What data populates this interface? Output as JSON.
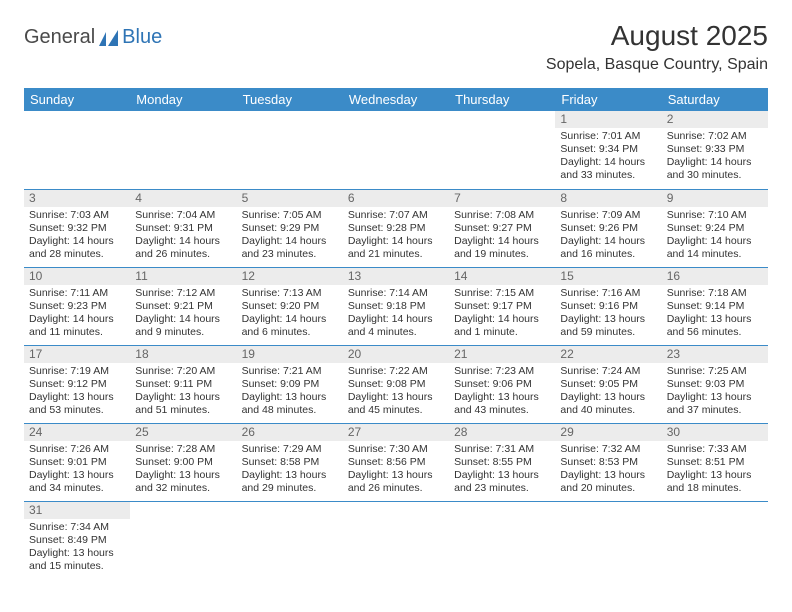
{
  "logo": {
    "general": "General",
    "blue": "Blue"
  },
  "title": "August 2025",
  "location": "Sopela, Basque Country, Spain",
  "colors": {
    "header_bg": "#3b8bc8",
    "header_fg": "#ffffff",
    "daynum_bg": "#ececec",
    "daynum_fg": "#666666",
    "text": "#333333",
    "rule": "#3b8bc8",
    "logo_blue": "#2e74b5"
  },
  "weekdays": [
    "Sunday",
    "Monday",
    "Tuesday",
    "Wednesday",
    "Thursday",
    "Friday",
    "Saturday"
  ],
  "weeks": [
    [
      null,
      null,
      null,
      null,
      null,
      {
        "n": "1",
        "sr": "Sunrise: 7:01 AM",
        "ss": "Sunset: 9:34 PM",
        "dl": "Daylight: 14 hours and 33 minutes."
      },
      {
        "n": "2",
        "sr": "Sunrise: 7:02 AM",
        "ss": "Sunset: 9:33 PM",
        "dl": "Daylight: 14 hours and 30 minutes."
      }
    ],
    [
      {
        "n": "3",
        "sr": "Sunrise: 7:03 AM",
        "ss": "Sunset: 9:32 PM",
        "dl": "Daylight: 14 hours and 28 minutes."
      },
      {
        "n": "4",
        "sr": "Sunrise: 7:04 AM",
        "ss": "Sunset: 9:31 PM",
        "dl": "Daylight: 14 hours and 26 minutes."
      },
      {
        "n": "5",
        "sr": "Sunrise: 7:05 AM",
        "ss": "Sunset: 9:29 PM",
        "dl": "Daylight: 14 hours and 23 minutes."
      },
      {
        "n": "6",
        "sr": "Sunrise: 7:07 AM",
        "ss": "Sunset: 9:28 PM",
        "dl": "Daylight: 14 hours and 21 minutes."
      },
      {
        "n": "7",
        "sr": "Sunrise: 7:08 AM",
        "ss": "Sunset: 9:27 PM",
        "dl": "Daylight: 14 hours and 19 minutes."
      },
      {
        "n": "8",
        "sr": "Sunrise: 7:09 AM",
        "ss": "Sunset: 9:26 PM",
        "dl": "Daylight: 14 hours and 16 minutes."
      },
      {
        "n": "9",
        "sr": "Sunrise: 7:10 AM",
        "ss": "Sunset: 9:24 PM",
        "dl": "Daylight: 14 hours and 14 minutes."
      }
    ],
    [
      {
        "n": "10",
        "sr": "Sunrise: 7:11 AM",
        "ss": "Sunset: 9:23 PM",
        "dl": "Daylight: 14 hours and 11 minutes."
      },
      {
        "n": "11",
        "sr": "Sunrise: 7:12 AM",
        "ss": "Sunset: 9:21 PM",
        "dl": "Daylight: 14 hours and 9 minutes."
      },
      {
        "n": "12",
        "sr": "Sunrise: 7:13 AM",
        "ss": "Sunset: 9:20 PM",
        "dl": "Daylight: 14 hours and 6 minutes."
      },
      {
        "n": "13",
        "sr": "Sunrise: 7:14 AM",
        "ss": "Sunset: 9:18 PM",
        "dl": "Daylight: 14 hours and 4 minutes."
      },
      {
        "n": "14",
        "sr": "Sunrise: 7:15 AM",
        "ss": "Sunset: 9:17 PM",
        "dl": "Daylight: 14 hours and 1 minute."
      },
      {
        "n": "15",
        "sr": "Sunrise: 7:16 AM",
        "ss": "Sunset: 9:16 PM",
        "dl": "Daylight: 13 hours and 59 minutes."
      },
      {
        "n": "16",
        "sr": "Sunrise: 7:18 AM",
        "ss": "Sunset: 9:14 PM",
        "dl": "Daylight: 13 hours and 56 minutes."
      }
    ],
    [
      {
        "n": "17",
        "sr": "Sunrise: 7:19 AM",
        "ss": "Sunset: 9:12 PM",
        "dl": "Daylight: 13 hours and 53 minutes."
      },
      {
        "n": "18",
        "sr": "Sunrise: 7:20 AM",
        "ss": "Sunset: 9:11 PM",
        "dl": "Daylight: 13 hours and 51 minutes."
      },
      {
        "n": "19",
        "sr": "Sunrise: 7:21 AM",
        "ss": "Sunset: 9:09 PM",
        "dl": "Daylight: 13 hours and 48 minutes."
      },
      {
        "n": "20",
        "sr": "Sunrise: 7:22 AM",
        "ss": "Sunset: 9:08 PM",
        "dl": "Daylight: 13 hours and 45 minutes."
      },
      {
        "n": "21",
        "sr": "Sunrise: 7:23 AM",
        "ss": "Sunset: 9:06 PM",
        "dl": "Daylight: 13 hours and 43 minutes."
      },
      {
        "n": "22",
        "sr": "Sunrise: 7:24 AM",
        "ss": "Sunset: 9:05 PM",
        "dl": "Daylight: 13 hours and 40 minutes."
      },
      {
        "n": "23",
        "sr": "Sunrise: 7:25 AM",
        "ss": "Sunset: 9:03 PM",
        "dl": "Daylight: 13 hours and 37 minutes."
      }
    ],
    [
      {
        "n": "24",
        "sr": "Sunrise: 7:26 AM",
        "ss": "Sunset: 9:01 PM",
        "dl": "Daylight: 13 hours and 34 minutes."
      },
      {
        "n": "25",
        "sr": "Sunrise: 7:28 AM",
        "ss": "Sunset: 9:00 PM",
        "dl": "Daylight: 13 hours and 32 minutes."
      },
      {
        "n": "26",
        "sr": "Sunrise: 7:29 AM",
        "ss": "Sunset: 8:58 PM",
        "dl": "Daylight: 13 hours and 29 minutes."
      },
      {
        "n": "27",
        "sr": "Sunrise: 7:30 AM",
        "ss": "Sunset: 8:56 PM",
        "dl": "Daylight: 13 hours and 26 minutes."
      },
      {
        "n": "28",
        "sr": "Sunrise: 7:31 AM",
        "ss": "Sunset: 8:55 PM",
        "dl": "Daylight: 13 hours and 23 minutes."
      },
      {
        "n": "29",
        "sr": "Sunrise: 7:32 AM",
        "ss": "Sunset: 8:53 PM",
        "dl": "Daylight: 13 hours and 20 minutes."
      },
      {
        "n": "30",
        "sr": "Sunrise: 7:33 AM",
        "ss": "Sunset: 8:51 PM",
        "dl": "Daylight: 13 hours and 18 minutes."
      }
    ],
    [
      {
        "n": "31",
        "sr": "Sunrise: 7:34 AM",
        "ss": "Sunset: 8:49 PM",
        "dl": "Daylight: 13 hours and 15 minutes."
      },
      null,
      null,
      null,
      null,
      null,
      null
    ]
  ]
}
